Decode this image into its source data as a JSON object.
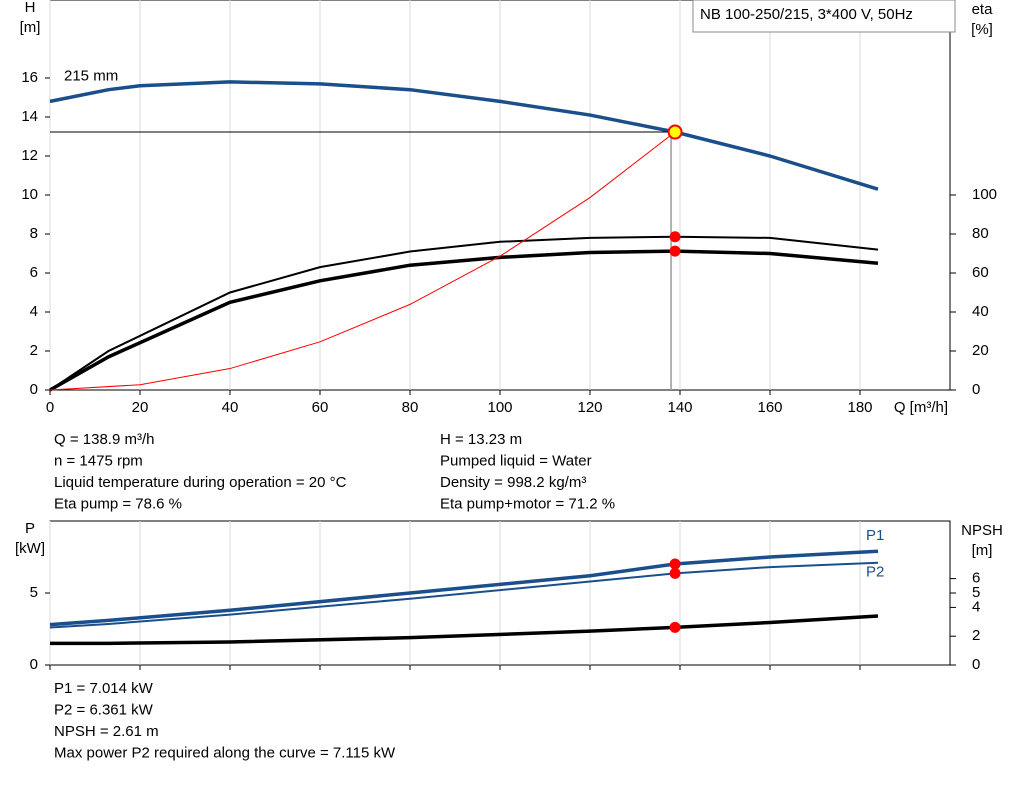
{
  "chart_data": [
    {
      "type": "line",
      "ylabel": [
        "H",
        "[m]"
      ],
      "y2label": [
        "eta",
        "[%]"
      ],
      "xlabel": "Q [m³/h]",
      "annotation": "NB 100-250/215, 3*400 V, 50Hz",
      "curve_label": "215 mm",
      "xlim": [
        0,
        200
      ],
      "xticks": [
        0,
        20,
        40,
        60,
        80,
        100,
        120,
        140,
        160,
        180
      ],
      "xtick_labels": true,
      "ylim": [
        0,
        20
      ],
      "yticks": [
        0,
        2,
        4,
        6,
        8,
        10,
        12,
        14,
        16
      ],
      "y2lim": [
        0,
        200
      ],
      "y2ticks": [
        0,
        20,
        40,
        60,
        80,
        100
      ],
      "grid": true,
      "operating_q": 138.9,
      "series": [
        {
          "color": "#1a4f8b",
          "axis": "y",
          "x": [
            0,
            13,
            20,
            40,
            60,
            80,
            100,
            120,
            138.9,
            160,
            184
          ],
          "values": [
            14.8,
            15.4,
            15.6,
            15.8,
            15.7,
            15.4,
            14.8,
            14.1,
            13.23,
            12.0,
            10.3
          ]
        },
        {
          "color": "#000000",
          "axis": "y2",
          "x": [
            0,
            13,
            40,
            60,
            80,
            100,
            120,
            138.9,
            160,
            184
          ],
          "values": [
            0,
            20,
            50,
            63,
            71,
            76,
            78,
            78.6,
            78,
            72
          ]
        },
        {
          "color": "#000000",
          "axis": "y2",
          "x": [
            0,
            13,
            40,
            60,
            80,
            100,
            120,
            138.9,
            160,
            184
          ],
          "values": [
            0,
            17,
            45,
            56,
            64,
            68,
            70.5,
            71.2,
            70,
            65
          ]
        },
        {
          "color": "#ff0000",
          "axis": "y",
          "x": [
            0,
            20,
            40,
            60,
            80,
            100,
            120,
            138.9
          ],
          "values": [
            0,
            0.27,
            1.1,
            2.47,
            4.39,
            6.86,
            9.87,
            13.23
          ]
        }
      ]
    },
    {
      "type": "line",
      "ylabel": [
        "P",
        "[kW]"
      ],
      "y2label": [
        "NPSH",
        "[m]"
      ],
      "xlim": [
        0,
        200
      ],
      "xticks": [
        0,
        20,
        40,
        60,
        80,
        100,
        120,
        140,
        160,
        180
      ],
      "xtick_labels": false,
      "ylim": [
        0,
        10
      ],
      "yticks": [
        0,
        5
      ],
      "y2lim": [
        0,
        10
      ],
      "y2ticks": [
        0,
        2,
        4,
        5,
        6
      ],
      "grid": true,
      "operating_q": 138.9,
      "series": [
        {
          "name": "P1",
          "color": "#1a4f8b",
          "axis": "y",
          "x": [
            0,
            13,
            40,
            80,
            120,
            138.9,
            160,
            184
          ],
          "values": [
            2.8,
            3.1,
            3.8,
            5.0,
            6.2,
            7.014,
            7.5,
            7.9
          ]
        },
        {
          "name": "P2",
          "color": "#1a4f8b",
          "axis": "y",
          "x": [
            0,
            13,
            40,
            80,
            120,
            138.9,
            160,
            184
          ],
          "values": [
            2.6,
            2.85,
            3.5,
            4.6,
            5.8,
            6.361,
            6.8,
            7.1
          ]
        },
        {
          "color": "#000000",
          "axis": "y2",
          "x": [
            0,
            13,
            40,
            80,
            120,
            138.9,
            160,
            184
          ],
          "values": [
            1.5,
            1.5,
            1.6,
            1.9,
            2.35,
            2.61,
            2.95,
            3.4
          ]
        }
      ]
    }
  ],
  "info_top_left": [
    "Q = 138.9 m³/h",
    "n = 1475 rpm",
    "Liquid temperature during operation = 20 °C",
    "Eta pump = 78.6 %"
  ],
  "info_top_right": [
    "H = 13.23 m",
    "Pumped liquid = Water",
    "Density = 998.2 kg/m³",
    "Eta pump+motor = 71.2 %"
  ],
  "info_bottom": [
    "P1 = 7.014 kW",
    "P2 = 6.361 kW",
    "NPSH = 2.61 m",
    "Max power P2 required along the curve = 7.115 kW"
  ]
}
